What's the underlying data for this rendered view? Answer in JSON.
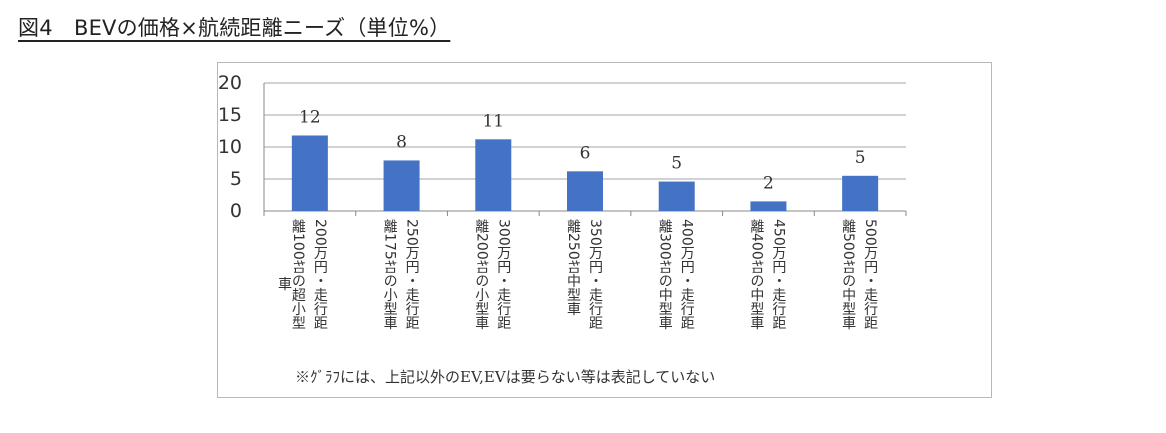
{
  "figure_title": "図4　BEVの価格×航続距離ニーズ（単位%）",
  "footnote": "※ｸﾞﾗﾌには、上記以外のEV,EVは要らない等は表記していない",
  "colors": {
    "bar": "#4472C4",
    "grid": "#a6a6a6",
    "axis": "#888888"
  },
  "chart_data": {
    "type": "bar",
    "title": "",
    "xlabel": "",
    "ylabel": "",
    "ylim": [
      0,
      20
    ],
    "yticks": [
      0,
      5,
      10,
      15,
      20
    ],
    "grid": true,
    "categories": [
      "200万円・走行距離100ｷﾛの超小型車",
      "250万円・走行距離175ｷﾛの小型車",
      "300万円・走行距離200ｷﾛの小型車",
      "350万円・走行距離250ｷﾛ中型車",
      "400万円・走行距離300ｷﾛの中型車",
      "450万円・走行距離400ｷﾛの中型車",
      "500万円・走行距離500ｷﾛの中型車"
    ],
    "category_lines": [
      [
        "200万円・走行距",
        "離100ｷﾛの超小型"
      ],
      [
        "250万円・走行距",
        "離175ｷﾛの小型車"
      ],
      [
        "300万円・走行距",
        "離200ｷﾛの小型車"
      ],
      [
        "350万円・走行距",
        "離250ｷﾛ中型車"
      ],
      [
        "400万円・走行距",
        "離300ｷﾛの中型車"
      ],
      [
        "450万円・走行距",
        "離400ｷﾛの中型車"
      ],
      [
        "500万円・走行距",
        "離500ｷﾛの中型車"
      ]
    ],
    "overflow_text": "車",
    "values": [
      12,
      8,
      11,
      6,
      5,
      2,
      5
    ],
    "bar_heights": [
      11.8,
      7.9,
      11.2,
      6.2,
      4.6,
      1.5,
      5.5
    ]
  }
}
